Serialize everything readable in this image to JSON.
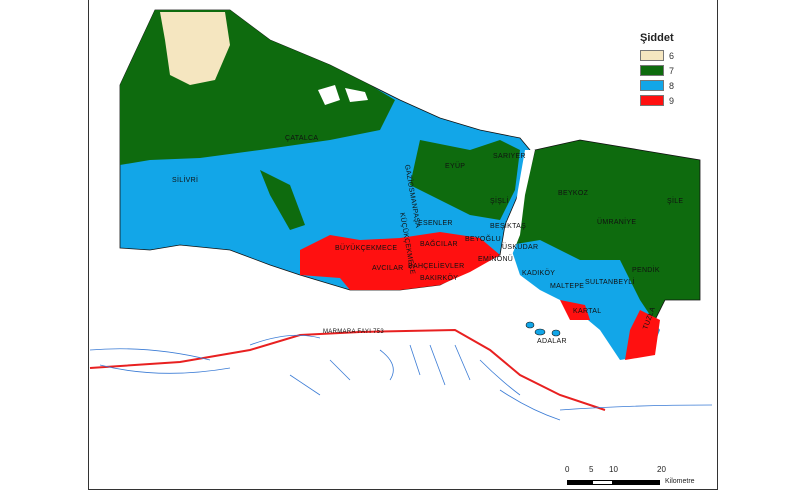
{
  "legend": {
    "title": "Şiddet",
    "items": [
      {
        "label": "6",
        "color": "#f5e6c0"
      },
      {
        "label": "7",
        "color": "#0e6b0e"
      },
      {
        "label": "8",
        "color": "#12a6e8"
      },
      {
        "label": "9",
        "color": "#ff1010"
      }
    ]
  },
  "districts": [
    "SİLİVRİ",
    "ÇATALCA",
    "GAZİOSMANPAŞA",
    "EYÜP",
    "SARIYER",
    "ŞİŞLİ",
    "BEŞİKTAŞ",
    "KÜÇÜKÇEKMECE",
    "ESENLER",
    "BÜYÜKÇEKMECE",
    "AVCILAR",
    "BAHÇELİEVLER",
    "BAKIRKÖY",
    "BAĞCILAR",
    "BEYOĞLU",
    "EMİNÖNÜ",
    "ÜSKÜDAR",
    "KADIKÖY",
    "MALTEPE",
    "SULTANBEYLİ",
    "KARTAL",
    "ADALAR",
    "BEYKOZ",
    "ÜMRANİYE",
    "ŞİLE",
    "PENDİK",
    "TUZLA"
  ],
  "fault_label": "MARMARA FAYI 753",
  "scale": {
    "ticks": [
      "0",
      "5",
      "10",
      "20"
    ],
    "unit": "Kilometre"
  }
}
